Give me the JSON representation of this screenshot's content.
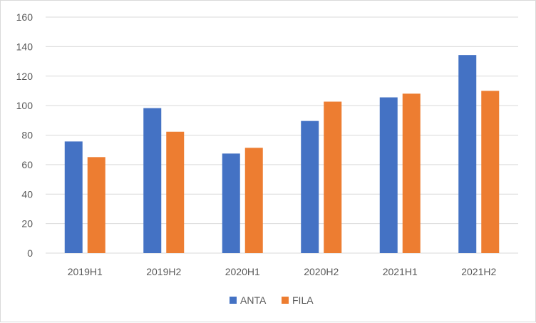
{
  "chart_data": {
    "type": "bar",
    "categories": [
      "2019H1",
      "2019H2",
      "2020H1",
      "2020H2",
      "2021H1",
      "2021H2"
    ],
    "series": [
      {
        "name": "ANTA",
        "color": "#4472C4",
        "values": [
          75.7,
          98.3,
          67.5,
          89.6,
          105.6,
          134.3
        ]
      },
      {
        "name": "FILA",
        "color": "#ED7D31",
        "values": [
          65.1,
          82.3,
          71.4,
          102.7,
          108.1,
          110.0
        ]
      }
    ],
    "ylim": [
      0,
      160
    ],
    "yticks": [
      0,
      20,
      40,
      60,
      80,
      100,
      120,
      140,
      160
    ],
    "grid": true,
    "legend": "bottom",
    "gridline_color": "#d9d9d9",
    "text_color": "#595959"
  }
}
